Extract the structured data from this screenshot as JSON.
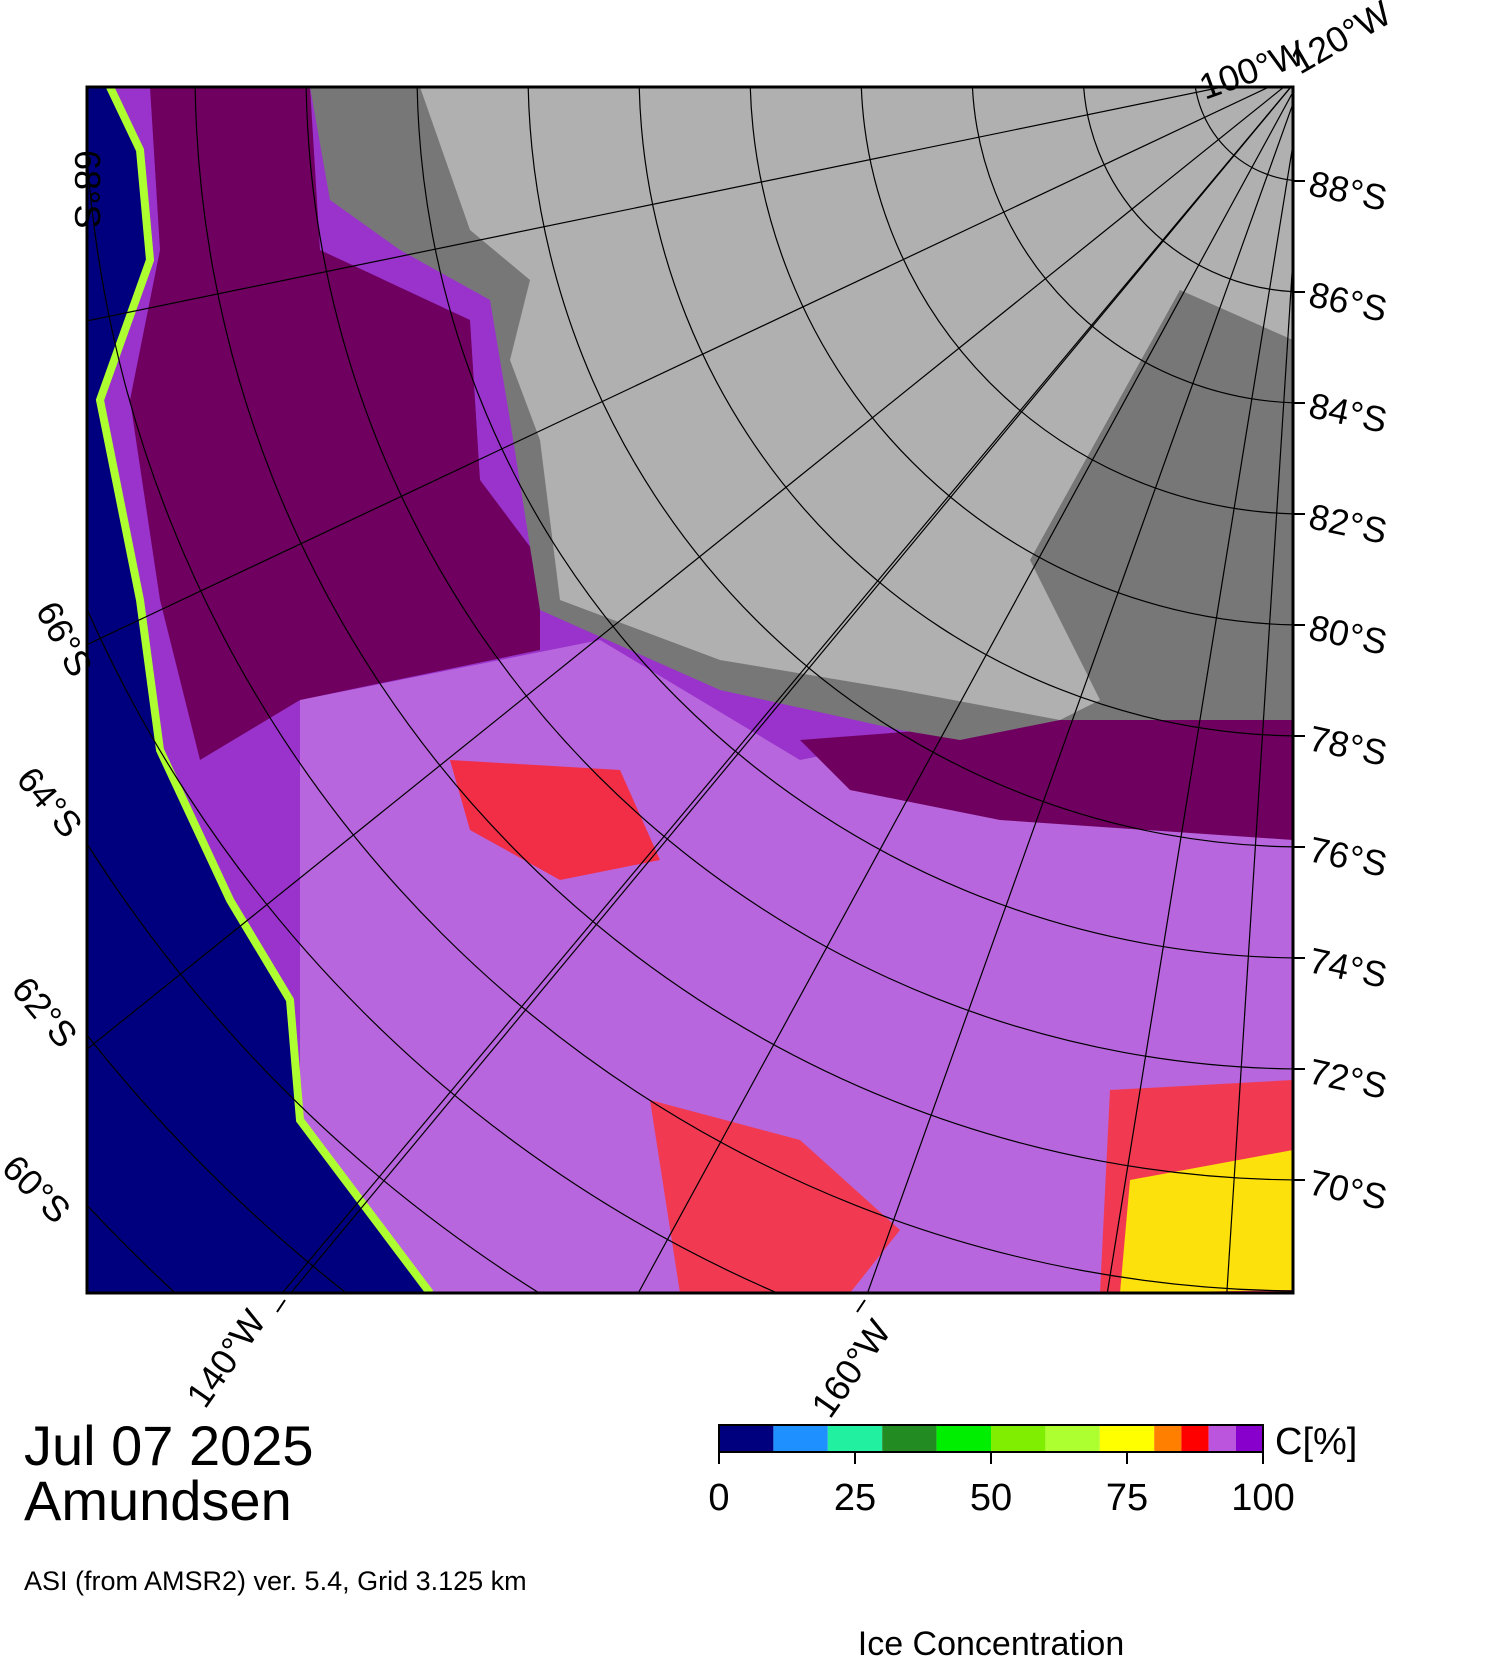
{
  "map": {
    "lon_labels_top": [
      "100°W",
      "120°W"
    ],
    "lon_labels_bottom": [
      "140°W",
      "160°W"
    ],
    "lat_labels_right": [
      "88°S",
      "86°S",
      "84°S",
      "82°S",
      "80°S",
      "78°S",
      "76°S",
      "74°S",
      "72°S",
      "70°S"
    ],
    "lat_labels_left": [
      "68°S",
      "66°S",
      "64°S",
      "62°S",
      "60°S"
    ]
  },
  "footer": {
    "date": "Jul 07 2025",
    "region": "Amundsen",
    "source": "ASI (from AMSR2) ver. 5.4,  Grid 3.125 km"
  },
  "colorbar": {
    "label": "Ice Concentration",
    "unit": "C[%]",
    "lim": [
      0,
      100
    ],
    "ticks": [
      0,
      25,
      50,
      75,
      100
    ],
    "segments": [
      {
        "from": 0,
        "to": 10,
        "color": "#00007f"
      },
      {
        "from": 10,
        "to": 20,
        "color": "#1e90ff"
      },
      {
        "from": 20,
        "to": 30,
        "color": "#20f0a0"
      },
      {
        "from": 30,
        "to": 40,
        "color": "#228b22"
      },
      {
        "from": 40,
        "to": 50,
        "color": "#00ee00"
      },
      {
        "from": 50,
        "to": 60,
        "color": "#7fee00"
      },
      {
        "from": 60,
        "to": 70,
        "color": "#adff2f"
      },
      {
        "from": 70,
        "to": 80,
        "color": "#ffff00"
      },
      {
        "from": 80,
        "to": 85,
        "color": "#ff8000"
      },
      {
        "from": 85,
        "to": 90,
        "color": "#ff0000"
      },
      {
        "from": 90,
        "to": 95,
        "color": "#bb55dd"
      },
      {
        "from": 95,
        "to": 100,
        "color": "#8800cc"
      }
    ]
  }
}
